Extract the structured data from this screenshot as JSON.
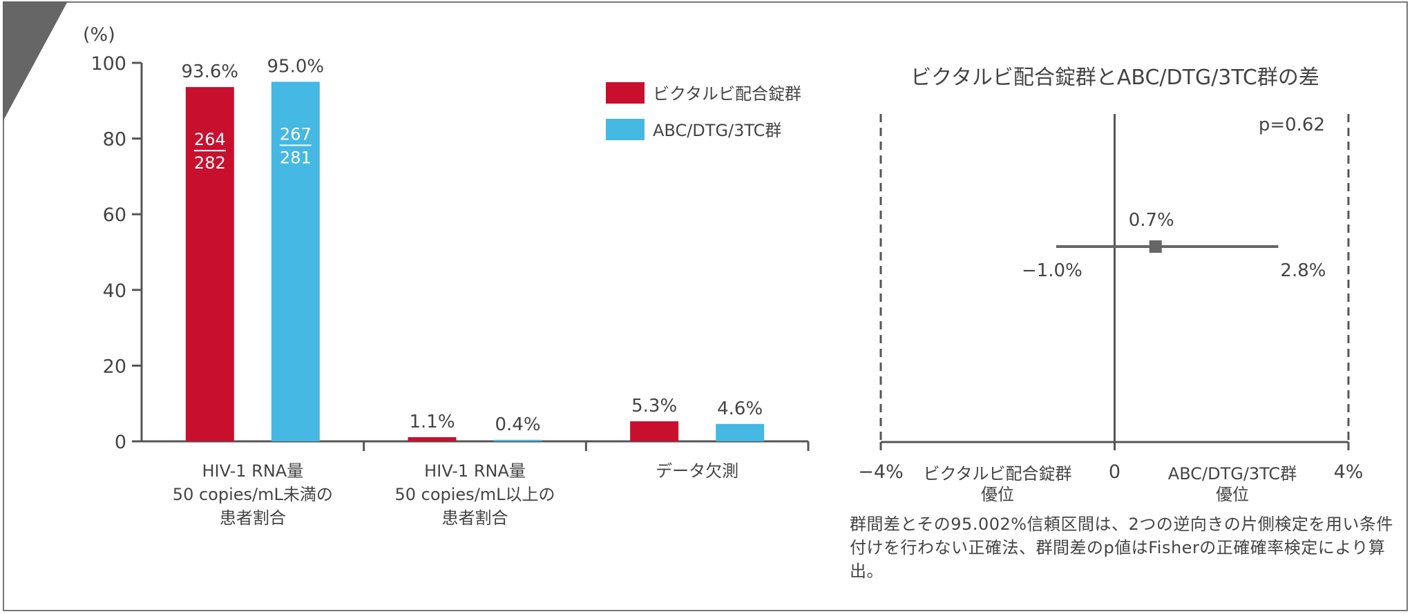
{
  "colors": {
    "series_a": "#c8102e",
    "series_b": "#45b8e3",
    "axis": "#555555",
    "marker": "#666666",
    "corner": "#666666"
  },
  "chart_data": [
    {
      "type": "bar",
      "ylabel": "(%)",
      "ylim": [
        0,
        100
      ],
      "yticks": [
        "0",
        "20",
        "40",
        "60",
        "80",
        "100"
      ],
      "categories": [
        [
          "HIV-1 RNA量",
          "50 copies/mL未満の",
          "患者割合"
        ],
        [
          "HIV-1 RNA量",
          "50 copies/mL以上の",
          "患者割合"
        ],
        [
          "データ欠測"
        ]
      ],
      "series": [
        {
          "name": "ビクタルビ配合錠群",
          "values": [
            93.6,
            1.1,
            5.3
          ],
          "labels": [
            "93.6%",
            "1.1%",
            "5.3%"
          ],
          "fraction": {
            "numerator": "264",
            "denominator": "282"
          }
        },
        {
          "name": "ABC/DTG/3TC群",
          "values": [
            95.0,
            0.4,
            4.6
          ],
          "labels": [
            "95.0%",
            "0.4%",
            "4.6%"
          ],
          "fraction": {
            "numerator": "267",
            "denominator": "281"
          }
        }
      ],
      "legend": "top-right",
      "grid": false
    },
    {
      "type": "forest",
      "title": "ビクタルビ配合錠群とABC/DTG/3TC群の差",
      "xlim": [
        -4,
        4
      ],
      "xticks": [
        "−4%",
        "0",
        "4%"
      ],
      "point": 0.7,
      "ci": [
        -1.0,
        2.8
      ],
      "point_label": "0.7%",
      "ci_labels": [
        "−1.0%",
        "2.8%"
      ],
      "p_value": "p=0.62",
      "favors_left": [
        "ビクタルビ配合錠群",
        "優位"
      ],
      "favors_right": [
        "ABC/DTG/3TC群",
        "優位"
      ]
    }
  ],
  "footnote": "群間差とその95.002%信頼区間は、2つの逆向きの片側検定を用い条件付けを行わない正確法、群間差のp値はFisherの正確確率検定により算出。"
}
